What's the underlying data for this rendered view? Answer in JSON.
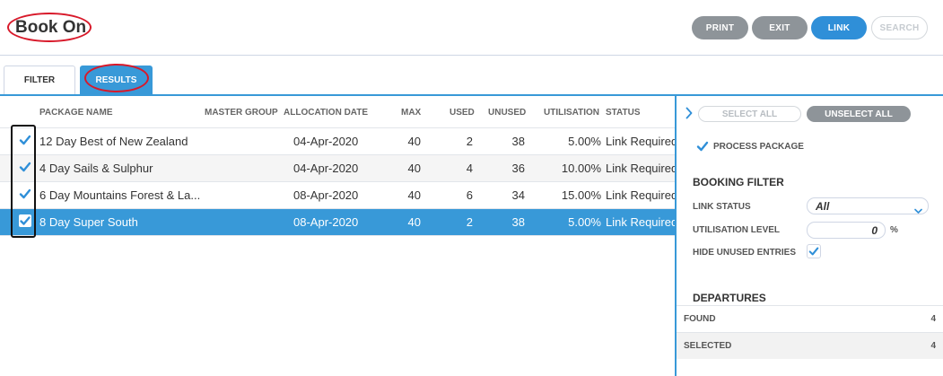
{
  "header": {
    "title": "Book On",
    "buttons": {
      "print": "PRINT",
      "exit": "EXIT",
      "link": "LINK",
      "search": "SEARCH"
    }
  },
  "tabs": {
    "filter": "FILTER",
    "results": "RESULTS"
  },
  "table": {
    "columns": {
      "package_name": "PACKAGE NAME",
      "master_group": "MASTER GROUP",
      "allocation_date": "ALLOCATION DATE",
      "max": "MAX",
      "used": "USED",
      "unused": "UNUSED",
      "utilisation": "UTILISATION",
      "status": "STATUS"
    },
    "rows": [
      {
        "checked": true,
        "package_name": "12 Day Best of New Zealand",
        "master_group": "",
        "allocation_date": "04-Apr-2020",
        "max": "40",
        "used": "2",
        "unused": "38",
        "utilisation": "5.00%",
        "status": "Link Required"
      },
      {
        "checked": true,
        "package_name": "4 Day Sails & Sulphur",
        "master_group": "",
        "allocation_date": "04-Apr-2020",
        "max": "40",
        "used": "4",
        "unused": "36",
        "utilisation": "10.00%",
        "status": "Link Required"
      },
      {
        "checked": true,
        "package_name": "6 Day Mountains Forest & La...",
        "master_group": "",
        "allocation_date": "08-Apr-2020",
        "max": "40",
        "used": "6",
        "unused": "34",
        "utilisation": "15.00%",
        "status": "Link Required"
      },
      {
        "checked": true,
        "package_name": "8 Day Super South",
        "master_group": "",
        "allocation_date": "08-Apr-2020",
        "max": "40",
        "used": "2",
        "unused": "38",
        "utilisation": "5.00%",
        "status": "Link Required"
      }
    ],
    "selected_row": 3
  },
  "panel": {
    "select_all": "SELECT ALL",
    "unselect_all": "UNSELECT ALL",
    "process_package": {
      "label": "PROCESS PACKAGE",
      "checked": true
    },
    "booking_filter": {
      "heading": "BOOKING FILTER",
      "link_status_label": "LINK STATUS",
      "link_status_value": "All",
      "utilisation_level_label": "UTILISATION LEVEL",
      "utilisation_level_value": "0",
      "utilisation_unit": "%",
      "hide_unused_label": "HIDE UNUSED ENTRIES",
      "hide_unused_checked": true
    },
    "departures": {
      "heading": "DEPARTURES",
      "found_label": "FOUND",
      "found_value": "4",
      "selected_label": "SELECTED",
      "selected_value": "4"
    }
  },
  "colors": {
    "accent": "#3899d8",
    "grey_button": "#8e9499",
    "annotation_red": "#d8192a"
  }
}
